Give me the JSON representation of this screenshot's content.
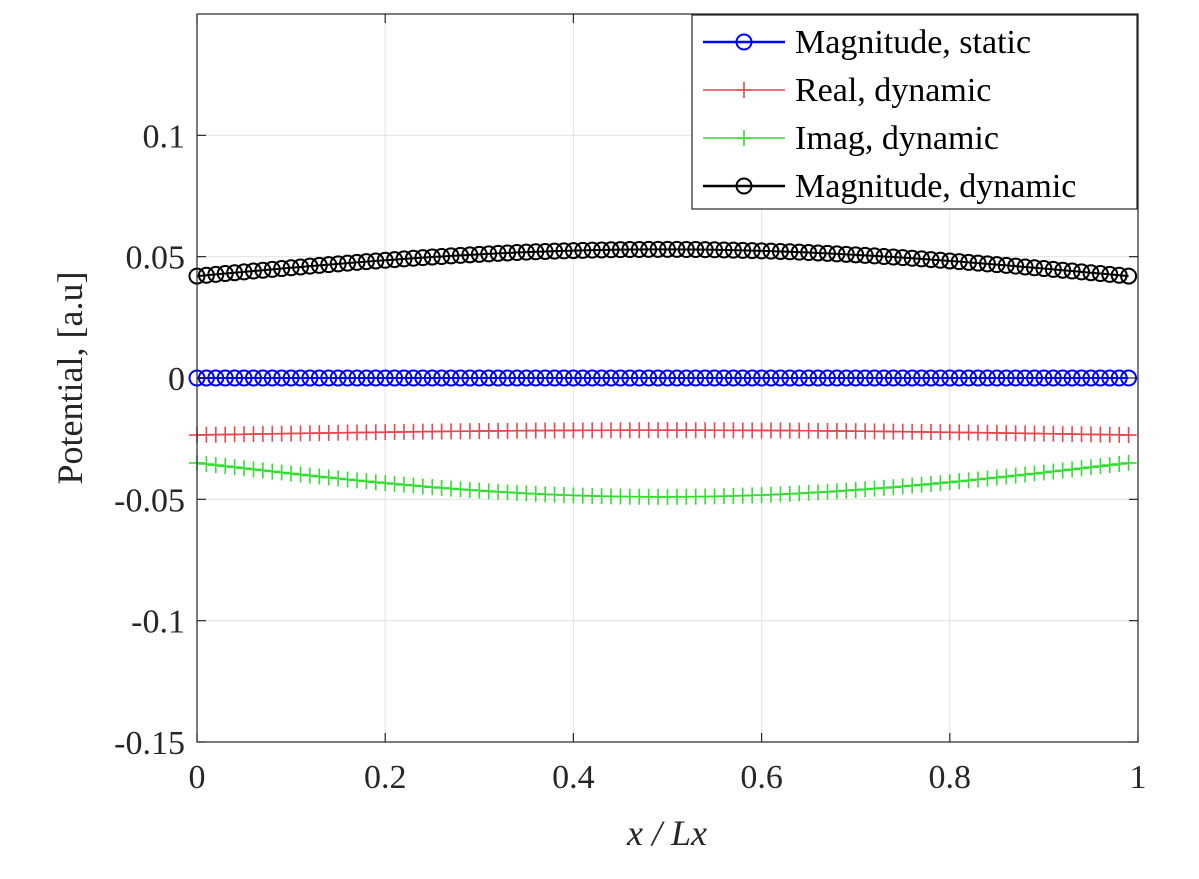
{
  "chart_data": {
    "type": "line",
    "xlabel": "x / Lx",
    "ylabel": "Potential, [a.u]",
    "xlim": [
      0,
      1
    ],
    "ylim": [
      -0.15,
      0.15
    ],
    "x_ticks": [
      0,
      0.2,
      0.4,
      0.6,
      0.8,
      1
    ],
    "x_tick_labels": [
      "0",
      "0.2",
      "0.4",
      "0.6",
      "0.8",
      "1"
    ],
    "y_ticks": [
      -0.15,
      -0.1,
      -0.05,
      0,
      0.05,
      0.1
    ],
    "y_tick_labels": [
      "-0.15",
      "-0.1",
      "-0.05",
      "0",
      "0.05",
      "0.1"
    ],
    "grid": true,
    "legend_position": "top-right",
    "n_points": 100,
    "x_start": 0,
    "x_end": 0.99,
    "series": [
      {
        "name": "Magnitude, static",
        "color": "#0000ff",
        "marker": "circle",
        "shape": "sine",
        "edge_value": 0,
        "center_value": 0
      },
      {
        "name": "Real, dynamic",
        "color": "#e8474f",
        "marker": "plus",
        "shape": "sine",
        "edge_value": -0.0235,
        "center_value": -0.0215
      },
      {
        "name": "Imag, dynamic",
        "color": "#33dd33",
        "marker": "plus",
        "shape": "sine",
        "edge_value": -0.035,
        "center_value": -0.049
      },
      {
        "name": "Magnitude, dynamic",
        "color": "#000000",
        "marker": "circle",
        "shape": "sine",
        "edge_value": 0.042,
        "center_value": 0.053
      }
    ]
  }
}
